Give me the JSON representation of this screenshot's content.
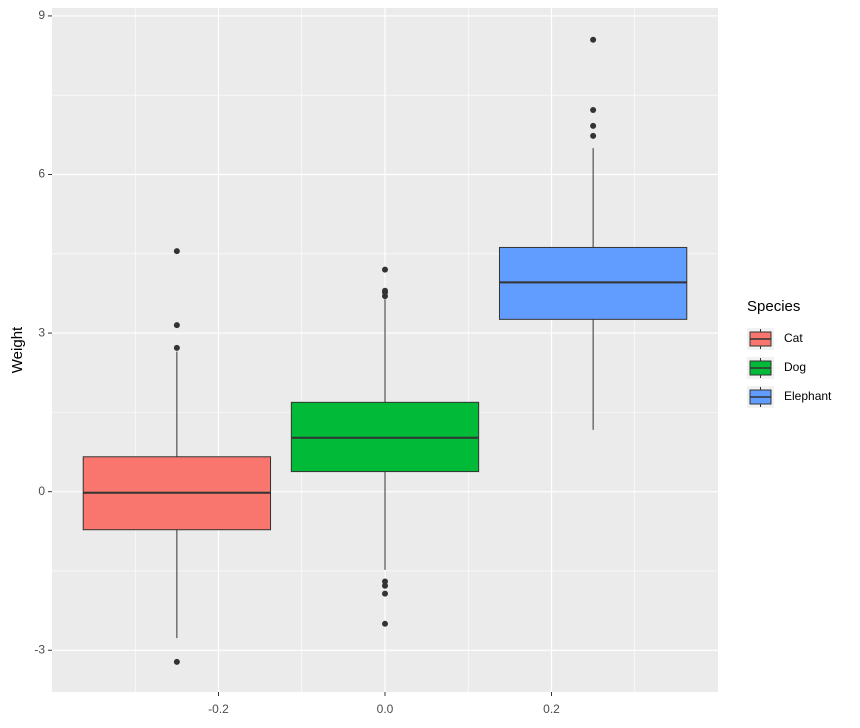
{
  "chart_data": {
    "type": "box",
    "y_label": "Weight",
    "legend_title": "Species",
    "xlim": [
      -0.4,
      0.4
    ],
    "ylim": [
      -3.79,
      9.15
    ],
    "xticks": [
      -0.2,
      {
        "value": 0,
        "label": "0.0"
      },
      0.2
    ],
    "yticks": [
      -3,
      0,
      3,
      6,
      9
    ],
    "minor_xticks": [
      -0.3,
      -0.1,
      0.1,
      0.3
    ],
    "minor_yticks": [
      -1.5,
      1.5,
      4.5,
      7.5
    ],
    "grid": true,
    "box_width": 0.225,
    "series": [
      {
        "name": "Cat",
        "color": "#F8766D",
        "x": -0.25,
        "whisker_low": -2.77,
        "q1": -0.72,
        "median": -0.02,
        "q3": 0.66,
        "whisker_high": 2.65,
        "outliers": [
          4.55,
          3.15,
          2.72,
          -3.22
        ]
      },
      {
        "name": "Dog",
        "color": "#00BA38",
        "x": 0,
        "whisker_low": -1.48,
        "q1": 0.38,
        "median": 1.02,
        "q3": 1.69,
        "whisker_high": 3.64,
        "outliers": [
          4.2,
          3.8,
          3.77,
          3.7,
          -1.7,
          -1.78,
          -1.93,
          -2.5
        ]
      },
      {
        "name": "Elephant",
        "color": "#619CFF",
        "x": 0.25,
        "whisker_low": 1.17,
        "q1": 3.26,
        "median": 3.96,
        "q3": 4.62,
        "whisker_high": 6.5,
        "outliers": [
          8.55,
          7.22,
          6.92,
          6.73
        ]
      }
    ]
  }
}
